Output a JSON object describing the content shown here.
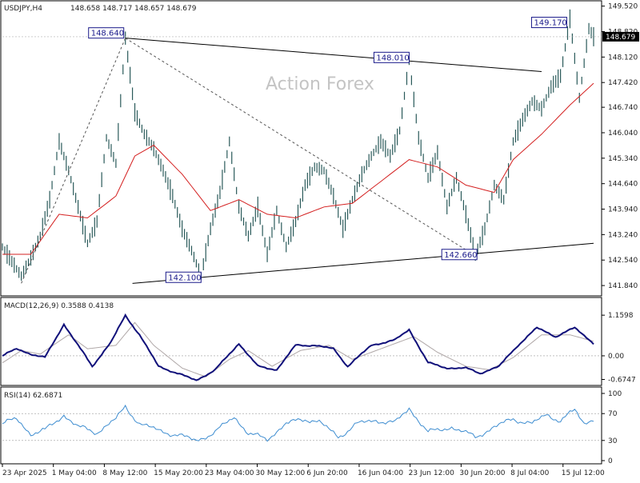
{
  "header": {
    "symbol": "USDJPY,H4",
    "ohlc": "148.658 148.717 148.657 148.679"
  },
  "watermark": "Action Forex",
  "colors": {
    "price_line": "#2a5a5a",
    "ma_line": "#d42020",
    "trend_line": "#000000",
    "dotted_line": "#555555",
    "label_border": "#1a1a8a",
    "current_price_bg": "#000000",
    "macd_line": "#10107a",
    "macd_signal": "#b0a8a8",
    "rsi_line": "#3c8cd0"
  },
  "chart_data": [
    {
      "type": "line",
      "title": "USDJPY,H4",
      "ylim": [
        141.6,
        149.6
      ],
      "y_ticks": [
        "149.520",
        "148.820",
        "148.120",
        "147.420",
        "146.740",
        "146.040",
        "145.340",
        "144.640",
        "143.940",
        "143.240",
        "142.540",
        "141.840"
      ],
      "current_price": "148.679",
      "x_labels": [
        "23 Apr 2025",
        "1 May 04:00",
        "8 May 12:00",
        "15 May 20:00",
        "23 May 04:00",
        "30 May 12:00",
        "6 Jun 20:00",
        "16 Jun 04:00",
        "23 Jun 12:00",
        "30 Jun 20:00",
        "8 Jul 04:00",
        "15 Jul 12:00"
      ],
      "price_series": [
        {
          "i": 0,
          "v": 142.9
        },
        {
          "i": 4,
          "v": 142.5
        },
        {
          "i": 8,
          "v": 142.1
        },
        {
          "i": 12,
          "v": 142.6
        },
        {
          "i": 16,
          "v": 143.2
        },
        {
          "i": 20,
          "v": 144.2
        },
        {
          "i": 24,
          "v": 145.8
        },
        {
          "i": 28,
          "v": 145.0
        },
        {
          "i": 32,
          "v": 144.0
        },
        {
          "i": 36,
          "v": 143.0
        },
        {
          "i": 40,
          "v": 143.6
        },
        {
          "i": 44,
          "v": 145.9
        },
        {
          "i": 48,
          "v": 145.2
        },
        {
          "i": 52,
          "v": 148.64
        },
        {
          "i": 56,
          "v": 146.6
        },
        {
          "i": 60,
          "v": 146.0
        },
        {
          "i": 64,
          "v": 145.6
        },
        {
          "i": 68,
          "v": 145.0
        },
        {
          "i": 72,
          "v": 144.3
        },
        {
          "i": 76,
          "v": 143.4
        },
        {
          "i": 80,
          "v": 142.8
        },
        {
          "i": 84,
          "v": 142.1
        },
        {
          "i": 88,
          "v": 143.4
        },
        {
          "i": 92,
          "v": 144.4
        },
        {
          "i": 96,
          "v": 145.8
        },
        {
          "i": 100,
          "v": 144.0
        },
        {
          "i": 104,
          "v": 143.2
        },
        {
          "i": 108,
          "v": 144.0
        },
        {
          "i": 112,
          "v": 142.7
        },
        {
          "i": 116,
          "v": 143.9
        },
        {
          "i": 120,
          "v": 142.9
        },
        {
          "i": 124,
          "v": 143.6
        },
        {
          "i": 128,
          "v": 144.6
        },
        {
          "i": 132,
          "v": 145.1
        },
        {
          "i": 136,
          "v": 145.0
        },
        {
          "i": 140,
          "v": 144.3
        },
        {
          "i": 144,
          "v": 143.4
        },
        {
          "i": 148,
          "v": 144.2
        },
        {
          "i": 152,
          "v": 144.9
        },
        {
          "i": 156,
          "v": 145.4
        },
        {
          "i": 160,
          "v": 145.8
        },
        {
          "i": 164,
          "v": 145.4
        },
        {
          "i": 168,
          "v": 146.1
        },
        {
          "i": 172,
          "v": 148.01
        },
        {
          "i": 176,
          "v": 145.9
        },
        {
          "i": 180,
          "v": 144.8
        },
        {
          "i": 184,
          "v": 145.5
        },
        {
          "i": 188,
          "v": 144.0
        },
        {
          "i": 192,
          "v": 144.8
        },
        {
          "i": 196,
          "v": 143.8
        },
        {
          "i": 200,
          "v": 142.66
        },
        {
          "i": 204,
          "v": 143.4
        },
        {
          "i": 208,
          "v": 144.6
        },
        {
          "i": 212,
          "v": 144.2
        },
        {
          "i": 216,
          "v": 145.8
        },
        {
          "i": 220,
          "v": 146.4
        },
        {
          "i": 224,
          "v": 146.9
        },
        {
          "i": 228,
          "v": 146.7
        },
        {
          "i": 232,
          "v": 147.3
        },
        {
          "i": 236,
          "v": 147.6
        },
        {
          "i": 240,
          "v": 149.17
        },
        {
          "i": 244,
          "v": 147.0
        },
        {
          "i": 248,
          "v": 148.9
        },
        {
          "i": 250,
          "v": 148.679
        }
      ],
      "ma_series": [
        {
          "i": 0,
          "v": 142.7
        },
        {
          "i": 12,
          "v": 142.7
        },
        {
          "i": 24,
          "v": 143.8
        },
        {
          "i": 36,
          "v": 143.7
        },
        {
          "i": 48,
          "v": 144.3
        },
        {
          "i": 56,
          "v": 145.4
        },
        {
          "i": 64,
          "v": 145.7
        },
        {
          "i": 76,
          "v": 144.9
        },
        {
          "i": 88,
          "v": 143.9
        },
        {
          "i": 100,
          "v": 144.2
        },
        {
          "i": 112,
          "v": 143.8
        },
        {
          "i": 124,
          "v": 143.7
        },
        {
          "i": 136,
          "v": 144.0
        },
        {
          "i": 148,
          "v": 144.1
        },
        {
          "i": 160,
          "v": 144.7
        },
        {
          "i": 172,
          "v": 145.3
        },
        {
          "i": 184,
          "v": 145.1
        },
        {
          "i": 196,
          "v": 144.6
        },
        {
          "i": 208,
          "v": 144.4
        },
        {
          "i": 216,
          "v": 145.3
        },
        {
          "i": 228,
          "v": 146.0
        },
        {
          "i": 240,
          "v": 146.8
        },
        {
          "i": 250,
          "v": 147.4
        }
      ],
      "trend_lines": [
        {
          "style": "solid",
          "from": {
            "i": 52,
            "v": 148.64
          },
          "to": {
            "i": 228,
            "v": 147.72
          }
        },
        {
          "style": "solid",
          "from": {
            "i": 55,
            "v": 141.9
          },
          "to": {
            "i": 250,
            "v": 143.0
          }
        },
        {
          "style": "dotted",
          "from": {
            "i": 8,
            "v": 141.9
          },
          "to": {
            "i": 52,
            "v": 148.64
          }
        },
        {
          "style": "dotted",
          "from": {
            "i": 52,
            "v": 148.64
          },
          "to": {
            "i": 200,
            "v": 142.66
          }
        }
      ],
      "annotations": [
        {
          "text": "148.640",
          "i": 52,
          "v": 148.64
        },
        {
          "text": "148.010",
          "i": 172,
          "v": 148.01
        },
        {
          "text": "142.100",
          "i": 84,
          "v": 142.1
        },
        {
          "text": "142.660",
          "i": 200,
          "v": 142.66
        },
        {
          "text": "149.170",
          "i": 240,
          "v": 149.17
        }
      ]
    },
    {
      "type": "line",
      "title": "MACD(12,26,9) 0.3588 0.4138",
      "ylim": [
        -0.8,
        1.3
      ],
      "y_ticks": [
        "1.1598",
        "0.00",
        "-0.6747"
      ],
      "macd_series": [
        {
          "i": 0,
          "v": 0.0
        },
        {
          "i": 6,
          "v": 0.2
        },
        {
          "i": 12,
          "v": 0.05
        },
        {
          "i": 18,
          "v": -0.05
        },
        {
          "i": 26,
          "v": 0.9
        },
        {
          "i": 32,
          "v": 0.3
        },
        {
          "i": 38,
          "v": -0.3
        },
        {
          "i": 46,
          "v": 0.4
        },
        {
          "i": 52,
          "v": 1.15
        },
        {
          "i": 58,
          "v": 0.6
        },
        {
          "i": 66,
          "v": -0.3
        },
        {
          "i": 74,
          "v": -0.5
        },
        {
          "i": 82,
          "v": -0.7
        },
        {
          "i": 90,
          "v": -0.4
        },
        {
          "i": 100,
          "v": 0.35
        },
        {
          "i": 108,
          "v": -0.3
        },
        {
          "i": 116,
          "v": -0.4
        },
        {
          "i": 124,
          "v": 0.3
        },
        {
          "i": 132,
          "v": 0.3
        },
        {
          "i": 140,
          "v": 0.2
        },
        {
          "i": 146,
          "v": -0.3
        },
        {
          "i": 156,
          "v": 0.3
        },
        {
          "i": 166,
          "v": 0.45
        },
        {
          "i": 172,
          "v": 0.75
        },
        {
          "i": 180,
          "v": -0.2
        },
        {
          "i": 188,
          "v": -0.35
        },
        {
          "i": 196,
          "v": -0.35
        },
        {
          "i": 202,
          "v": -0.5
        },
        {
          "i": 210,
          "v": -0.3
        },
        {
          "i": 218,
          "v": 0.3
        },
        {
          "i": 226,
          "v": 0.8
        },
        {
          "i": 234,
          "v": 0.55
        },
        {
          "i": 242,
          "v": 0.8
        },
        {
          "i": 250,
          "v": 0.3588
        }
      ],
      "signal_series": [
        {
          "i": 0,
          "v": -0.2
        },
        {
          "i": 8,
          "v": 0.15
        },
        {
          "i": 16,
          "v": 0.05
        },
        {
          "i": 28,
          "v": 0.6
        },
        {
          "i": 36,
          "v": 0.2
        },
        {
          "i": 48,
          "v": 0.3
        },
        {
          "i": 56,
          "v": 0.95
        },
        {
          "i": 64,
          "v": 0.3
        },
        {
          "i": 76,
          "v": -0.35
        },
        {
          "i": 86,
          "v": -0.6
        },
        {
          "i": 96,
          "v": -0.1
        },
        {
          "i": 104,
          "v": 0.15
        },
        {
          "i": 114,
          "v": -0.3
        },
        {
          "i": 126,
          "v": 0.15
        },
        {
          "i": 138,
          "v": 0.3
        },
        {
          "i": 148,
          "v": -0.1
        },
        {
          "i": 160,
          "v": 0.2
        },
        {
          "i": 174,
          "v": 0.55
        },
        {
          "i": 184,
          "v": 0.1
        },
        {
          "i": 196,
          "v": -0.3
        },
        {
          "i": 206,
          "v": -0.4
        },
        {
          "i": 216,
          "v": -0.05
        },
        {
          "i": 228,
          "v": 0.6
        },
        {
          "i": 240,
          "v": 0.6
        },
        {
          "i": 250,
          "v": 0.4138
        }
      ]
    },
    {
      "type": "line",
      "title": "RSI(14) 62.6871",
      "ylim": [
        0,
        100
      ],
      "y_ticks": [
        "100",
        "70",
        "30",
        "0"
      ],
      "levels": [
        70,
        30
      ],
      "rsi_series": [
        {
          "i": 0,
          "v": 55
        },
        {
          "i": 6,
          "v": 62
        },
        {
          "i": 12,
          "v": 40
        },
        {
          "i": 18,
          "v": 45
        },
        {
          "i": 26,
          "v": 68
        },
        {
          "i": 32,
          "v": 50
        },
        {
          "i": 40,
          "v": 42
        },
        {
          "i": 48,
          "v": 62
        },
        {
          "i": 52,
          "v": 80
        },
        {
          "i": 58,
          "v": 55
        },
        {
          "i": 66,
          "v": 45
        },
        {
          "i": 74,
          "v": 38
        },
        {
          "i": 82,
          "v": 30
        },
        {
          "i": 90,
          "v": 42
        },
        {
          "i": 98,
          "v": 66
        },
        {
          "i": 104,
          "v": 40
        },
        {
          "i": 112,
          "v": 32
        },
        {
          "i": 120,
          "v": 55
        },
        {
          "i": 128,
          "v": 62
        },
        {
          "i": 134,
          "v": 58
        },
        {
          "i": 142,
          "v": 35
        },
        {
          "i": 150,
          "v": 55
        },
        {
          "i": 158,
          "v": 60
        },
        {
          "i": 166,
          "v": 56
        },
        {
          "i": 172,
          "v": 78
        },
        {
          "i": 180,
          "v": 42
        },
        {
          "i": 190,
          "v": 50
        },
        {
          "i": 200,
          "v": 35
        },
        {
          "i": 208,
          "v": 50
        },
        {
          "i": 216,
          "v": 62
        },
        {
          "i": 224,
          "v": 55
        },
        {
          "i": 230,
          "v": 68
        },
        {
          "i": 236,
          "v": 60
        },
        {
          "i": 242,
          "v": 75
        },
        {
          "i": 246,
          "v": 55
        },
        {
          "i": 250,
          "v": 62.6871
        }
      ]
    }
  ]
}
